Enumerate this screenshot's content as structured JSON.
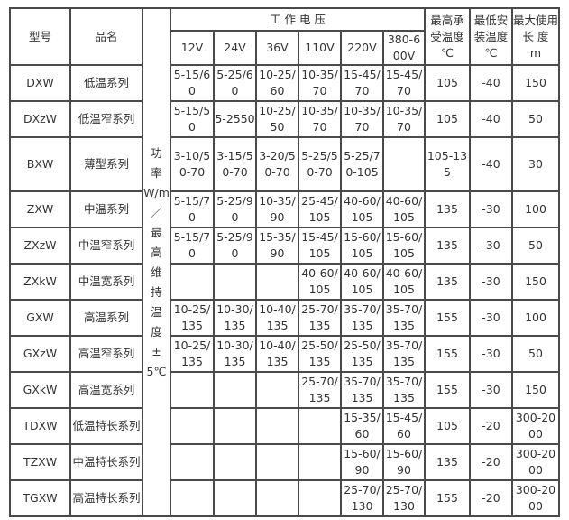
{
  "header": {
    "model": "型号",
    "name": "品名",
    "power_label_lines": [
      "功",
      "率",
      "W/m",
      "／",
      "最",
      "高",
      "维",
      "持",
      "温",
      "度",
      "±",
      "5℃"
    ],
    "voltage_group": "工 作 电 压",
    "voltages": [
      "12V",
      "24V",
      "36V",
      "110V",
      "220V",
      "380-600V"
    ],
    "max_temp": [
      "最高承",
      "受温度",
      "℃"
    ],
    "min_install": [
      "最低安",
      "装温度",
      "℃"
    ],
    "max_length": [
      "最大使用",
      "长 度",
      "m"
    ]
  },
  "rows": [
    {
      "model": "DXW",
      "name": "低温系列",
      "v": [
        "5-15/60",
        "5-25/60",
        "10-25/60",
        "10-35/70",
        "15-45/70",
        "15-45/70"
      ],
      "max_temp": "105",
      "min_install": "-40",
      "max_length": "150"
    },
    {
      "model": "DXzW",
      "name": "低温窄系列",
      "v": [
        "5-15/50",
        "5-2550",
        "10-25/50",
        "10-35/70",
        "10-35/70",
        "10-35/70"
      ],
      "max_temp": "105",
      "min_install": "-40",
      "max_length": "50"
    },
    {
      "model": "BXW",
      "name": "薄型系列",
      "v": [
        "3-10/50-70",
        "3-15/50-70",
        "3-20/50-70",
        "5-25/50-70",
        "5-25/70-105",
        ""
      ],
      "max_temp": "105-135",
      "min_install": "-40",
      "max_length": "30"
    },
    {
      "model": "ZXW",
      "name": "中温系列",
      "v": [
        "5-15/70",
        "5-25/90",
        "10-35/90",
        "25-45/105",
        "40-60/105",
        "40-60/105"
      ],
      "max_temp": "135",
      "min_install": "-30",
      "max_length": "100"
    },
    {
      "model": "ZXzW",
      "name": "中温窄系列",
      "v": [
        "5-15/70",
        "5-25/90",
        "15-35/90",
        "15-45/105",
        "15-60/105",
        "15-60/105"
      ],
      "max_temp": "135",
      "min_install": "-30",
      "max_length": "50"
    },
    {
      "model": "ZXkW",
      "name": "中温宽系列",
      "v": [
        "",
        "",
        "",
        "40-60/105",
        "40-60/105",
        "40-60/105"
      ],
      "max_temp": "135",
      "min_install": "-30",
      "max_length": "150"
    },
    {
      "model": "GXW",
      "name": "高温系列",
      "v": [
        "10-25/135",
        "10-30/135",
        "10-40/135",
        "25-70/135",
        "35-70/135",
        "35-70/135"
      ],
      "max_temp": "155",
      "min_install": "-30",
      "max_length": "100"
    },
    {
      "model": "GXzW",
      "name": "高温窄系列",
      "v": [
        "10-25/135",
        "10-30/135",
        "10-40/135",
        "25-50/135",
        "25-50/135",
        "35-70/135"
      ],
      "max_temp": "155",
      "min_install": "-30",
      "max_length": "50"
    },
    {
      "model": "GXkW",
      "name": "高温宽系列",
      "v": [
        "",
        "",
        "",
        "25-70/135",
        "35-70/135",
        "35-70/135"
      ],
      "max_temp": "155",
      "min_install": "-30",
      "max_length": "150"
    },
    {
      "model": "TDXW",
      "name": "低温特长系列",
      "v": [
        "",
        "",
        "",
        "",
        "15-35/60",
        "15-45/60"
      ],
      "max_temp": "105",
      "min_install": "-20",
      "max_length": "300-2000"
    },
    {
      "model": "TZXW",
      "name": "中温特长系列",
      "v": [
        "",
        "",
        "",
        "",
        "15-60/90",
        "15-60/90"
      ],
      "max_temp": "135",
      "min_install": "-20",
      "max_length": "300-2000"
    },
    {
      "model": "TGXW",
      "name": "高温特长系列",
      "v": [
        "",
        "",
        "",
        "",
        "25-70/130",
        "25-70/130"
      ],
      "max_temp": "155",
      "min_install": "-20",
      "max_length": "300-2000"
    }
  ]
}
